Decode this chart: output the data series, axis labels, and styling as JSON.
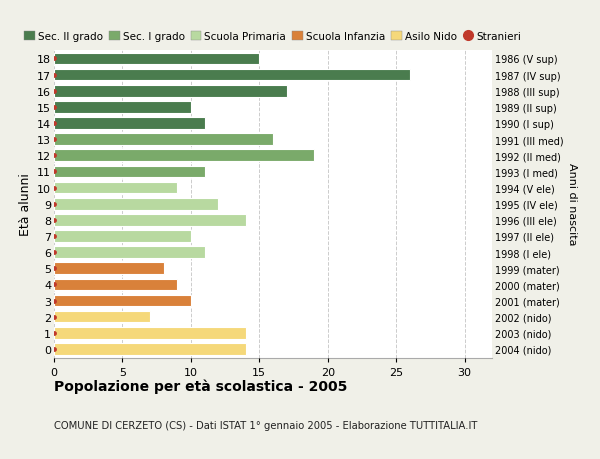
{
  "ages": [
    18,
    17,
    16,
    15,
    14,
    13,
    12,
    11,
    10,
    9,
    8,
    7,
    6,
    5,
    4,
    3,
    2,
    1,
    0
  ],
  "values": [
    15,
    26,
    17,
    10,
    11,
    16,
    19,
    11,
    9,
    12,
    14,
    10,
    11,
    8,
    9,
    10,
    7,
    14,
    14
  ],
  "year_labels": [
    "1986 (V sup)",
    "1987 (IV sup)",
    "1988 (III sup)",
    "1989 (II sup)",
    "1990 (I sup)",
    "1991 (III med)",
    "1992 (II med)",
    "1993 (I med)",
    "1994 (V ele)",
    "1995 (IV ele)",
    "1996 (III ele)",
    "1997 (II ele)",
    "1998 (I ele)",
    "1999 (mater)",
    "2000 (mater)",
    "2001 (mater)",
    "2002 (nido)",
    "2003 (nido)",
    "2004 (nido)"
  ],
  "colors": [
    "#4a7c4e",
    "#4a7c4e",
    "#4a7c4e",
    "#4a7c4e",
    "#4a7c4e",
    "#7aaa6a",
    "#7aaa6a",
    "#7aaa6a",
    "#b8d9a0",
    "#b8d9a0",
    "#b8d9a0",
    "#b8d9a0",
    "#b8d9a0",
    "#d9813a",
    "#d9813a",
    "#d9813a",
    "#f5d87a",
    "#f5d87a",
    "#f5d87a"
  ],
  "legend_labels": [
    "Sec. II grado",
    "Sec. I grado",
    "Scuola Primaria",
    "Scuola Infanzia",
    "Asilo Nido",
    "Stranieri"
  ],
  "legend_colors": [
    "#4a7c4e",
    "#7aaa6a",
    "#b8d9a0",
    "#d9813a",
    "#f5d87a",
    "#c0392b"
  ],
  "ylabel_left": "Età alunni",
  "ylabel_right": "Anni di nascita",
  "title": "Popolazione per età scolastica - 2005",
  "subtitle": "COMUNE DI CERZETO (CS) - Dati ISTAT 1° gennaio 2005 - Elaborazione TUTTITALIA.IT",
  "xlim": [
    0,
    32
  ],
  "background_color": "#f0f0e8",
  "plot_bg": "#ffffff",
  "grid_color": "#cccccc",
  "stranieri_color": "#c0392b"
}
